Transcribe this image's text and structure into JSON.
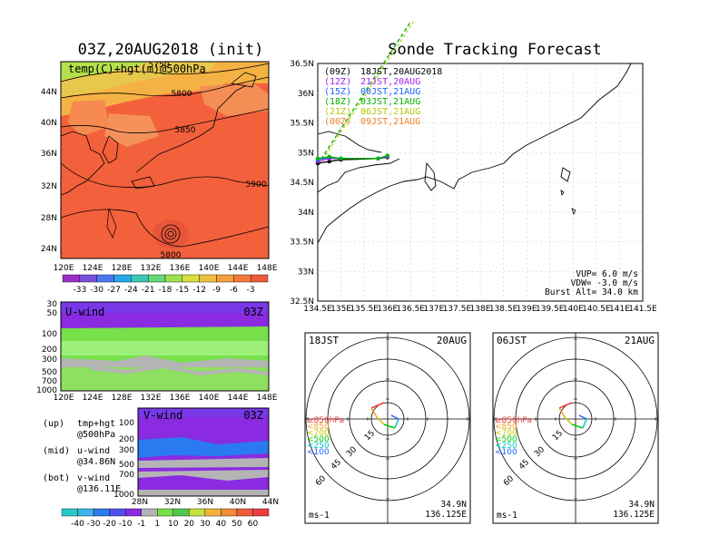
{
  "left_title": "03Z,20AUG2018 (init)",
  "right_title": "Sonde Tracking Forecast",
  "map_panel": {
    "label": "temp(C)+hgt(m)@500hPa",
    "lat_ticks": [
      "44N",
      "40N",
      "36N",
      "32N",
      "28N",
      "24N"
    ],
    "lon_ticks": [
      "120E",
      "124E",
      "128E",
      "132E",
      "136E",
      "140E",
      "144E",
      "148E"
    ],
    "contours": [
      "5750",
      "5800",
      "5850",
      "5900",
      "5800"
    ]
  },
  "temp_colorbar": [
    "-33",
    "-30",
    "-27",
    "-24",
    "-21",
    "-18",
    "-15",
    "-12",
    "-9",
    "-6",
    "-3"
  ],
  "u_panel": {
    "label": "U-wind",
    "time": "03Z",
    "p_ticks": [
      "30",
      "50",
      "100",
      "200",
      "300",
      "500",
      "700",
      "1000"
    ],
    "lon_ticks": [
      "120E",
      "124E",
      "128E",
      "132E",
      "136E",
      "140E",
      "144E",
      "148E"
    ]
  },
  "v_panel": {
    "label": "V-wind",
    "time": "03Z",
    "p_ticks": [
      "100",
      "200",
      "300",
      "500",
      "700",
      "1000"
    ],
    "lat_ticks": [
      "28N",
      "32N",
      "36N",
      "40N",
      "44N"
    ]
  },
  "wind_colorbar": [
    "-40",
    "-30",
    "-20",
    "-10",
    "-1",
    "1",
    "10",
    "20",
    "30",
    "40",
    "50",
    "60"
  ],
  "notes": [
    {
      "k": "(up)",
      "v": "tmp+hgt",
      "v2": "@500hPa"
    },
    {
      "k": "(mid)",
      "v": "u-wind",
      "v2": "@34.86N"
    },
    {
      "k": "(bot)",
      "v": "v-wind",
      "v2": "@136.11E"
    }
  ],
  "track_panel": {
    "lat_ticks": [
      "36.5N",
      "36N",
      "35.5N",
      "35N",
      "34.5N",
      "34N",
      "33.5N",
      "33N",
      "32.5N"
    ],
    "lon_ticks": [
      "134.5E",
      "135E",
      "135.5E",
      "136E",
      "136.5E",
      "137E",
      "137.5E",
      "138E",
      "138.5E",
      "139E",
      "139.5E",
      "140E",
      "140.5E",
      "141E",
      "141.5E"
    ],
    "legend": [
      {
        "code": "(09Z)",
        "time": "18JST,20AUG2018",
        "color": "#000000"
      },
      {
        "code": "(12Z)",
        "time": "21JST,20AUG",
        "color": "#a020f0"
      },
      {
        "code": "(15Z)",
        "time": "00JST,21AUG",
        "color": "#1e64ff"
      },
      {
        "code": "(18Z)",
        "time": "03JST,21AUG",
        "color": "#00b400"
      },
      {
        "code": "(21Z)",
        "time": "06JST,21AUG",
        "color": "#b4c800"
      },
      {
        "code": "(00Z)",
        "time": "09JST,21AUG",
        "color": "#f08228"
      }
    ],
    "params": [
      "VUP=  6.0 m/s",
      "VDW= -3.0 m/s",
      "Burst Alt= 34.0 km"
    ]
  },
  "hodographs": [
    {
      "time": "18JST",
      "date": "20AUG",
      "lat": "34.9N",
      "lon": "136.125E",
      "unit": "ms-1",
      "rings": [
        "15",
        "30",
        "45",
        "60"
      ]
    },
    {
      "time": "06JST",
      "date": "21AUG",
      "lat": "34.9N",
      "lon": "136.125E",
      "unit": "ms-1",
      "rings": [
        "15",
        "30",
        "45",
        "60"
      ]
    }
  ],
  "hodo_legend": [
    {
      "t": "≥850hPa",
      "c": "#f03c3c"
    },
    {
      "t": "<850",
      "c": "#f0a028"
    },
    {
      "t": "<700",
      "c": "#c8c800"
    },
    {
      "t": "<500",
      "c": "#00c800"
    },
    {
      "t": "<250",
      "c": "#00c8c8"
    },
    {
      "t": "<100",
      "c": "#1e64ff"
    }
  ],
  "chart_data": {
    "type": "line",
    "series": [
      {
        "name": "(09Z)",
        "color": "#000000",
        "x": [
          134.5,
          134.75,
          135.0,
          135.8,
          136.0
        ],
        "y": [
          34.82,
          34.85,
          34.88,
          34.9,
          34.92
        ]
      },
      {
        "name": "(12Z)",
        "color": "#a020f0",
        "x": [
          134.5,
          134.75,
          135.0,
          135.8,
          136.0
        ],
        "y": [
          34.85,
          34.9,
          34.9,
          34.9,
          34.93
        ]
      },
      {
        "name": "(15Z)",
        "color": "#1e64ff",
        "x": [
          134.5,
          134.75,
          135.0,
          135.8,
          136.0
        ],
        "y": [
          34.88,
          34.92,
          34.9,
          34.9,
          34.94
        ]
      },
      {
        "name": "(18Z)",
        "color": "#00b400",
        "x": [
          134.5,
          134.75,
          135.0,
          135.8,
          136.0
        ],
        "y": [
          34.9,
          34.93,
          34.9,
          34.9,
          34.95
        ]
      }
    ],
    "ascent_line": {
      "x": [
        134.5,
        136.5
      ],
      "y": [
        34.8,
        37.2
      ]
    },
    "xlim": [
      134.5,
      141.5
    ],
    "ylim": [
      32.5,
      36.5
    ]
  }
}
